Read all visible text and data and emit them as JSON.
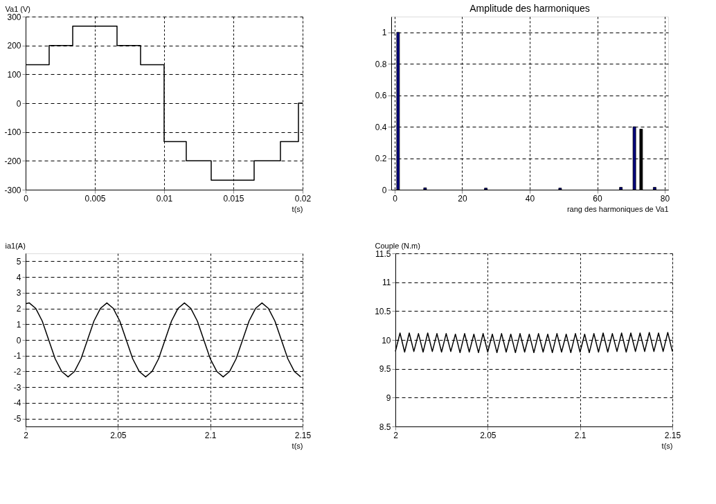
{
  "chart_data": [
    {
      "type": "step",
      "ylabel": "Va1 (V)",
      "xlabel": "t(s)",
      "xlim": [
        0,
        0.02
      ],
      "xticks": [
        0,
        0.005,
        0.01,
        0.015,
        0.02
      ],
      "ylim": [
        -300,
        300
      ],
      "yticks": [
        -300,
        -200,
        -100,
        0,
        100,
        200,
        300
      ],
      "grid": true,
      "line_style": "solid",
      "series": [
        {
          "color": "#000000",
          "x": [
            0,
            0.0017,
            0.0034,
            0.0066,
            0.0083,
            0.01,
            0.0116,
            0.0134,
            0.0165,
            0.0184,
            0.0197,
            0.02
          ],
          "values": [
            133,
            200,
            267,
            200,
            133,
            -133,
            -200,
            -267,
            -200,
            -133,
            0,
            0
          ]
        }
      ]
    },
    {
      "type": "bar",
      "title": "Amplitude des harmoniques",
      "xlabel": "rang des harmoniques de Va1",
      "xlim": [
        0,
        80
      ],
      "xticks": [
        0,
        20,
        40,
        60,
        80
      ],
      "ylim": [
        0,
        1.1
      ],
      "yticks": [
        0,
        0.2,
        0.4,
        0.6,
        0.8,
        1
      ],
      "grid": true,
      "x": [
        1,
        9,
        27,
        49,
        67,
        71,
        73,
        77
      ],
      "values": [
        1.0,
        0.012,
        0.01,
        0.01,
        0.015,
        0.4,
        0.385,
        0.015
      ],
      "colors": [
        "#000080",
        "#000080",
        "#000080",
        "#000080",
        "#000080",
        "#000080",
        "#000000",
        "#000080"
      ]
    },
    {
      "type": "line",
      "ylabel": "ia1(A)",
      "xlabel": "t(s)",
      "xlim": [
        2,
        2.15
      ],
      "xticks": [
        2,
        2.05,
        2.1,
        2.15
      ],
      "ylim": [
        -5.5,
        5.5
      ],
      "yticks": [
        -5,
        -4,
        -3,
        -2,
        -1,
        0,
        1,
        2,
        3,
        4,
        5
      ],
      "grid": true,
      "line_style": "solid",
      "series": [
        {
          "color": "#000000",
          "x": [
            2.0,
            2.002,
            2.0055,
            2.009,
            2.0125,
            2.016,
            2.0195,
            2.023,
            2.0265,
            2.03,
            2.0335,
            2.037,
            2.0405,
            2.044,
            2.0475,
            2.051,
            2.0545,
            2.058,
            2.0615,
            2.065,
            2.0685,
            2.072,
            2.0755,
            2.079,
            2.0825,
            2.086,
            2.0895,
            2.093,
            2.0965,
            2.1,
            2.1035,
            2.107,
            2.1105,
            2.114,
            2.1175,
            2.121,
            2.1245,
            2.128,
            2.1315,
            2.135,
            2.1385,
            2.142,
            2.1455,
            2.149
          ],
          "values": [
            2.3,
            2.35,
            2.0,
            1.2,
            0,
            -1.2,
            -2.0,
            -2.35,
            -2.0,
            -1.2,
            0,
            1.2,
            2.0,
            2.35,
            2.0,
            1.2,
            0,
            -1.2,
            -2.0,
            -2.35,
            -2.0,
            -1.2,
            0,
            1.2,
            2.0,
            2.35,
            2.0,
            1.2,
            0,
            -1.2,
            -2.0,
            -2.35,
            -2.0,
            -1.2,
            0,
            1.2,
            2.0,
            2.35,
            2.0,
            1.2,
            0,
            -1.2,
            -2.0,
            -2.35
          ]
        }
      ]
    },
    {
      "type": "line",
      "ylabel": "Couple (N.m)",
      "xlabel": "t(s)",
      "xlim": [
        2,
        2.15
      ],
      "xticks": [
        2,
        2.05,
        2.1,
        2.15
      ],
      "ylim": [
        8.5,
        11.5
      ],
      "yticks": [
        8.5,
        9,
        9.5,
        10,
        10.5,
        11,
        11.5
      ],
      "grid": true,
      "line_style": "solid",
      "series": [
        {
          "color": "#000000",
          "x": [
            2.0,
            2.0025,
            2.005,
            2.0075,
            2.01,
            2.0125,
            2.015,
            2.0175,
            2.02,
            2.0225,
            2.025,
            2.0275,
            2.03,
            2.0325,
            2.035,
            2.0375,
            2.04,
            2.0425,
            2.045,
            2.0475,
            2.05,
            2.0525,
            2.055,
            2.0575,
            2.06,
            2.0625,
            2.065,
            2.0675,
            2.07,
            2.0725,
            2.075,
            2.0775,
            2.08,
            2.0825,
            2.085,
            2.0875,
            2.09,
            2.0925,
            2.095,
            2.0975,
            2.1,
            2.1025,
            2.105,
            2.1075,
            2.11,
            2.1125,
            2.115,
            2.1175,
            2.12,
            2.1225,
            2.125,
            2.1275,
            2.13,
            2.1325,
            2.135,
            2.1375,
            2.14,
            2.1425,
            2.145,
            2.1475,
            2.15
          ],
          "values": [
            9.8,
            10.12,
            9.79,
            10.12,
            9.8,
            10.11,
            9.79,
            10.12,
            9.8,
            10.11,
            9.79,
            10.11,
            9.8,
            10.1,
            9.78,
            10.11,
            9.79,
            10.1,
            9.78,
            10.11,
            9.79,
            10.1,
            9.78,
            10.11,
            9.79,
            10.1,
            9.78,
            10.11,
            9.79,
            10.1,
            9.78,
            10.11,
            9.79,
            10.1,
            9.78,
            10.11,
            9.79,
            10.1,
            9.78,
            10.11,
            9.79,
            10.1,
            9.78,
            10.11,
            9.79,
            10.12,
            9.79,
            10.11,
            9.8,
            10.12,
            9.79,
            10.12,
            9.8,
            10.12,
            9.8,
            10.13,
            9.8,
            10.12,
            9.8,
            10.13,
            9.8
          ]
        }
      ]
    }
  ]
}
